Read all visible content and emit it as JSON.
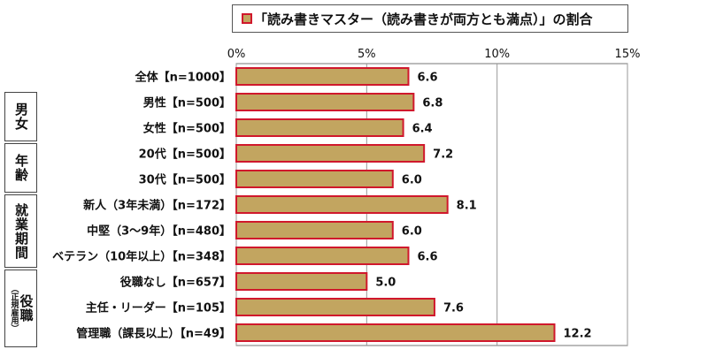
{
  "chart_data": {
    "type": "bar",
    "orientation": "horizontal",
    "title": "「読み書きマスター（読み書きが両方とも満点）」の割合",
    "xlim": [
      0,
      15
    ],
    "ticks": [
      0,
      5,
      10,
      15
    ],
    "tick_labels": [
      "0%",
      "5%",
      "10%",
      "15%"
    ],
    "grid": true,
    "categories": [
      "全体【n=1000】",
      "男性【n=500】",
      "女性【n=500】",
      "20代【n=500】",
      "30代【n=500】",
      "新人（3年未満）【n=172】",
      "中堅（3～9年）【n=480】",
      "ベテラン（10年以上）【n=348】",
      "役職なし【n=657】",
      "主任・リーダー【n=105】",
      "管理職（課長以上）【n=49】"
    ],
    "values": [
      6.6,
      6.8,
      6.4,
      7.2,
      6.0,
      8.1,
      6.0,
      6.6,
      5.0,
      7.6,
      12.2
    ],
    "value_labels": [
      "6.6",
      "6.8",
      "6.4",
      "7.2",
      "6.0",
      "8.1",
      "6.0",
      "6.6",
      "5.0",
      "7.6",
      "12.2"
    ],
    "groups": [
      {
        "label": "男女",
        "rows": [
          1,
          2
        ]
      },
      {
        "label": "年齢",
        "rows": [
          3,
          4
        ]
      },
      {
        "label": "就業期間",
        "rows": [
          5,
          6,
          7
        ]
      },
      {
        "label": "役職",
        "sublabel": "（正規雇用）",
        "rows": [
          8,
          9,
          10
        ]
      }
    ],
    "colors": {
      "bar_fill": "#c2a560",
      "bar_border": "#d0182c",
      "grid": "#999999"
    }
  }
}
